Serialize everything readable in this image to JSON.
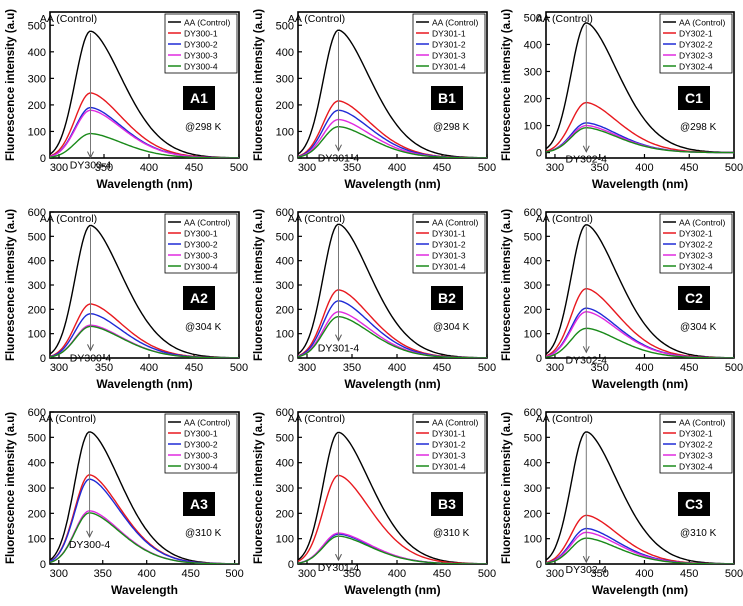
{
  "chart_data": [
    {
      "id": "A1",
      "type": "line",
      "panel_label": "A1",
      "temp_label": "@298 K",
      "xlabel": "Wavelength (nm)",
      "ylabel": "Fluorescence intensity (a.u)",
      "xlim": [
        290,
        500
      ],
      "ylim": [
        0,
        550
      ],
      "xticks": [
        300,
        350,
        400,
        450,
        500
      ],
      "yticks": [
        0,
        100,
        200,
        300,
        400,
        500
      ],
      "annotation_top": "AA (Control)",
      "annotation_bottom": "DY300-4",
      "peak_x": 335,
      "series": [
        {
          "name": "AA (Control)",
          "color": "#000000",
          "peak": 478
        },
        {
          "name": "DY300-1",
          "color": "#e8191f",
          "peak": 245
        },
        {
          "name": "DY300-2",
          "color": "#1f2ad6",
          "peak": 190
        },
        {
          "name": "DY300-3",
          "color": "#e02ae0",
          "peak": 180
        },
        {
          "name": "DY300-4",
          "color": "#1a8a1a",
          "peak": 92
        }
      ]
    },
    {
      "id": "B1",
      "type": "line",
      "panel_label": "B1",
      "temp_label": "@298 K",
      "xlabel": "Wavelength (nm)",
      "ylabel": "Fluorescence intensity (a.u)",
      "xlim": [
        290,
        500
      ],
      "ylim": [
        0,
        550
      ],
      "xticks": [
        300,
        350,
        400,
        450,
        500
      ],
      "yticks": [
        0,
        100,
        200,
        300,
        400,
        500
      ],
      "annotation_top": "AA (Control)",
      "annotation_bottom": "DY301-4",
      "peak_x": 335,
      "series": [
        {
          "name": "AA (Control)",
          "color": "#000000",
          "peak": 482
        },
        {
          "name": "DY301-1",
          "color": "#e8191f",
          "peak": 215
        },
        {
          "name": "DY301-2",
          "color": "#1f2ad6",
          "peak": 180
        },
        {
          "name": "DY301-3",
          "color": "#e02ae0",
          "peak": 145
        },
        {
          "name": "DY301-4",
          "color": "#1a8a1a",
          "peak": 118
        }
      ]
    },
    {
      "id": "C1",
      "type": "line",
      "panel_label": "C1",
      "temp_label": "@298 K",
      "xlabel": "Wavelength (nm)",
      "ylabel": "Fluorescence intensity (a.u)",
      "xlim": [
        290,
        500
      ],
      "ylim": [
        -20,
        520
      ],
      "xticks": [
        300,
        350,
        400,
        450,
        500
      ],
      "yticks": [
        0,
        100,
        200,
        300,
        400,
        500
      ],
      "annotation_top": "AA (Control)",
      "annotation_bottom": "DY302-4",
      "peak_x": 335,
      "series": [
        {
          "name": "AA (Control)",
          "color": "#000000",
          "peak": 480
        },
        {
          "name": "DY302-1",
          "color": "#e8191f",
          "peak": 185
        },
        {
          "name": "DY302-2",
          "color": "#1f2ad6",
          "peak": 110
        },
        {
          "name": "DY302-3",
          "color": "#e02ae0",
          "peak": 100
        },
        {
          "name": "DY302-4",
          "color": "#1a8a1a",
          "peak": 92
        }
      ]
    },
    {
      "id": "A2",
      "type": "line",
      "panel_label": "A2",
      "temp_label": "@304 K",
      "xlabel": "Wavelength (nm)",
      "ylabel": "Fluorescence intensity (a.u)",
      "xlim": [
        290,
        500
      ],
      "ylim": [
        0,
        600
      ],
      "xticks": [
        300,
        350,
        400,
        450,
        500
      ],
      "yticks": [
        0,
        100,
        200,
        300,
        400,
        500,
        600
      ],
      "annotation_top": "AA (Control)",
      "annotation_bottom": "DY300-4",
      "peak_x": 335,
      "series": [
        {
          "name": "AA (Control)",
          "color": "#000000",
          "peak": 545
        },
        {
          "name": "DY300-1",
          "color": "#e8191f",
          "peak": 222
        },
        {
          "name": "DY300-2",
          "color": "#1f2ad6",
          "peak": 182
        },
        {
          "name": "DY300-3",
          "color": "#e02ae0",
          "peak": 135
        },
        {
          "name": "DY300-4",
          "color": "#1a8a1a",
          "peak": 130
        }
      ]
    },
    {
      "id": "B2",
      "type": "line",
      "panel_label": "B2",
      "temp_label": "@304 K",
      "xlabel": "Wavelength (nm)",
      "ylabel": "Fluorescence intensity (a.u)",
      "xlim": [
        290,
        500
      ],
      "ylim": [
        0,
        600
      ],
      "xticks": [
        300,
        350,
        400,
        450,
        500
      ],
      "yticks": [
        0,
        100,
        200,
        300,
        400,
        500,
        600
      ],
      "annotation_top": "AA (Control)",
      "annotation_bottom": "DY301-4",
      "peak_x": 335,
      "series": [
        {
          "name": "AA (Control)",
          "color": "#000000",
          "peak": 550
        },
        {
          "name": "DY301-1",
          "color": "#e8191f",
          "peak": 280
        },
        {
          "name": "DY301-2",
          "color": "#1f2ad6",
          "peak": 235
        },
        {
          "name": "DY301-3",
          "color": "#e02ae0",
          "peak": 190
        },
        {
          "name": "DY301-4",
          "color": "#1a8a1a",
          "peak": 170
        }
      ]
    },
    {
      "id": "C2",
      "type": "line",
      "panel_label": "C2",
      "temp_label": "@304 K",
      "xlabel": "Wavelength (nm)",
      "ylabel": "Fluorescence intensity (a.u)",
      "xlim": [
        290,
        500
      ],
      "ylim": [
        0,
        600
      ],
      "xticks": [
        300,
        350,
        400,
        450,
        500
      ],
      "yticks": [
        0,
        100,
        200,
        300,
        400,
        500,
        600
      ],
      "annotation_top": "AA (Control)",
      "annotation_bottom": "DY302-4",
      "peak_x": 335,
      "series": [
        {
          "name": "AA (Control)",
          "color": "#000000",
          "peak": 548
        },
        {
          "name": "DY302-1",
          "color": "#e8191f",
          "peak": 285
        },
        {
          "name": "DY302-2",
          "color": "#1f2ad6",
          "peak": 205
        },
        {
          "name": "DY302-3",
          "color": "#e02ae0",
          "peak": 190
        },
        {
          "name": "DY302-4",
          "color": "#1a8a1a",
          "peak": 122
        }
      ]
    },
    {
      "id": "A3",
      "type": "line",
      "panel_label": "A3",
      "temp_label": "@310 K",
      "xlabel": "Wavelength",
      "ylabel": "Fluorescence intensity (a.u)",
      "xlim": [
        290,
        505
      ],
      "ylim": [
        0,
        600
      ],
      "xticks": [
        300,
        350,
        400,
        450,
        500
      ],
      "yticks": [
        0,
        100,
        200,
        300,
        400,
        500,
        600
      ],
      "annotation_top": "AA (Control)",
      "annotation_bottom": "DY300-4",
      "peak_x": 335,
      "series": [
        {
          "name": "AA (Control)",
          "color": "#000000",
          "peak": 522
        },
        {
          "name": "DY300-1",
          "color": "#e8191f",
          "peak": 352
        },
        {
          "name": "DY300-2",
          "color": "#1f2ad6",
          "peak": 335
        },
        {
          "name": "DY300-3",
          "color": "#e02ae0",
          "peak": 210
        },
        {
          "name": "DY300-4",
          "color": "#1a8a1a",
          "peak": 202
        }
      ]
    },
    {
      "id": "B3",
      "type": "line",
      "panel_label": "B3",
      "temp_label": "@310 K",
      "xlabel": "Wavelength (nm)",
      "ylabel": "Fluorescence intensity (a.u)",
      "xlim": [
        290,
        500
      ],
      "ylim": [
        0,
        600
      ],
      "xticks": [
        300,
        350,
        400,
        450,
        500
      ],
      "yticks": [
        0,
        100,
        200,
        300,
        400,
        500,
        600
      ],
      "annotation_top": "AA (Control)",
      "annotation_bottom": "DY301-4",
      "peak_x": 335,
      "series": [
        {
          "name": "AA (Control)",
          "color": "#000000",
          "peak": 520
        },
        {
          "name": "DY301-1",
          "color": "#e8191f",
          "peak": 350
        },
        {
          "name": "DY301-2",
          "color": "#1f2ad6",
          "peak": 118
        },
        {
          "name": "DY301-3",
          "color": "#e02ae0",
          "peak": 122
        },
        {
          "name": "DY301-4",
          "color": "#1a8a1a",
          "peak": 110
        }
      ]
    },
    {
      "id": "C3",
      "type": "line",
      "panel_label": "C3",
      "temp_label": "@310 K",
      "xlabel": "Wavelength (nm)",
      "ylabel": "Fluorescence intensity (a.u)",
      "xlim": [
        290,
        500
      ],
      "ylim": [
        0,
        600
      ],
      "xticks": [
        300,
        350,
        400,
        450,
        500
      ],
      "yticks": [
        0,
        100,
        200,
        300,
        400,
        500,
        600
      ],
      "annotation_top": "AA (Control)",
      "annotation_bottom": "DY302-4",
      "peak_x": 335,
      "series": [
        {
          "name": "AA (Control)",
          "color": "#000000",
          "peak": 522
        },
        {
          "name": "DY302-1",
          "color": "#e8191f",
          "peak": 192
        },
        {
          "name": "DY302-2",
          "color": "#1f2ad6",
          "peak": 140
        },
        {
          "name": "DY302-3",
          "color": "#e02ae0",
          "peak": 125
        },
        {
          "name": "DY302-4",
          "color": "#1a8a1a",
          "peak": 102
        }
      ]
    }
  ]
}
